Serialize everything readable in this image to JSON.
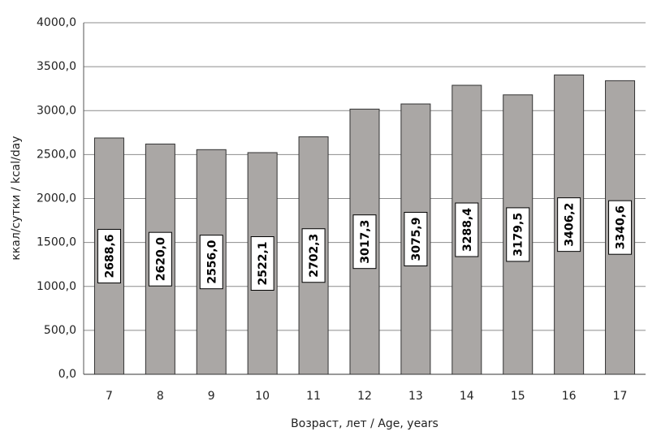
{
  "chart_data": {
    "type": "bar",
    "x_label": "Возраст, лет / Age, years",
    "y_label": "ккал/сутки / kcal/day",
    "categories": [
      "7",
      "8",
      "9",
      "10",
      "11",
      "12",
      "13",
      "14",
      "15",
      "16",
      "17"
    ],
    "values": [
      2688.6,
      2620.0,
      2556.0,
      2522.1,
      2702.3,
      3017.3,
      3075.9,
      3288.4,
      3179.5,
      3406.2,
      3340.6
    ],
    "value_labels": [
      "2688,6",
      "2620,0",
      "2556,0",
      "2522,1",
      "2702,3",
      "3017,3",
      "3075,9",
      "3288,4",
      "3179,5",
      "3406,2",
      "3340,6"
    ],
    "color": "#aaa7a5",
    "ylim": [
      0,
      4000
    ],
    "yticks": [
      {
        "value": 0,
        "label": "0,0"
      },
      {
        "value": 500,
        "label": "500,0"
      },
      {
        "value": 1000,
        "label": "1000,0"
      },
      {
        "value": 1500,
        "label": "1500,0"
      },
      {
        "value": 2000,
        "label": "2000,0"
      },
      {
        "value": 2500,
        "label": "2500,0"
      },
      {
        "value": 3000,
        "label": "3000,0"
      },
      {
        "value": 3500,
        "label": "3500,0"
      },
      {
        "value": 4000,
        "label": "4000,0"
      }
    ],
    "grid": true
  }
}
